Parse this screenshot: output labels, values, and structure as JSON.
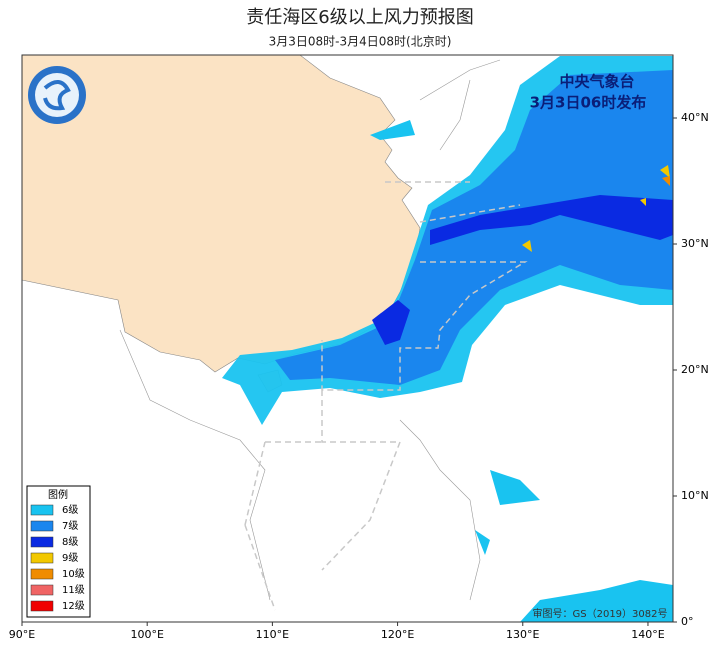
{
  "title": "责任海区6级以上风力预报图",
  "subtitle": "3月3日08时-3月4日08时(北京时)",
  "issuer": {
    "agency": "中央气象台",
    "issued": "3月3日06时发布"
  },
  "map": {
    "lonlim": [
      90,
      142
    ],
    "latlim": [
      0,
      45
    ],
    "lon_ticks": [
      {
        "value": 90,
        "label": "90°E"
      },
      {
        "value": 100,
        "label": "100°E"
      },
      {
        "value": 110,
        "label": "110°E"
      },
      {
        "value": 120,
        "label": "120°E"
      },
      {
        "value": 130,
        "label": "130°E"
      },
      {
        "value": 140,
        "label": "140°E"
      }
    ],
    "lat_ticks": [
      {
        "value": 0,
        "label": "0°"
      },
      {
        "value": 10,
        "label": "10°N"
      },
      {
        "value": 20,
        "label": "20°N"
      },
      {
        "value": 30,
        "label": "30°N"
      },
      {
        "value": 40,
        "label": "40°N"
      }
    ]
  },
  "legend": {
    "title": "图例",
    "items": [
      {
        "label": "6级",
        "color": "#19c3f0"
      },
      {
        "label": "7级",
        "color": "#1a86ee"
      },
      {
        "label": "8级",
        "color": "#0a2ae2"
      },
      {
        "label": "9级",
        "color": "#f2c800"
      },
      {
        "label": "10级",
        "color": "#f08c00"
      },
      {
        "label": "11级",
        "color": "#f06464"
      },
      {
        "label": "12级",
        "color": "#f00000"
      }
    ]
  },
  "approval": "审图号：GS（2019）3082号"
}
